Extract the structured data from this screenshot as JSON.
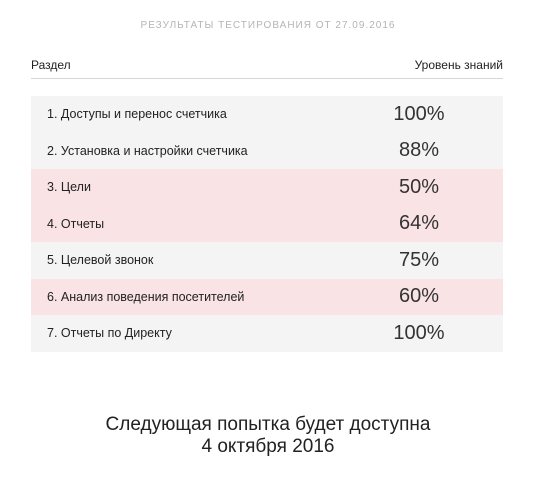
{
  "results_title": "РЕЗУЛЬТАТЫ ТЕСТИРОВАНИЯ ОТ 27.09.2016",
  "table": {
    "header": {
      "section": "Раздел",
      "knowledge": "Уровень знаний"
    },
    "rows": [
      {
        "section": "1. Доступы и перенос счетчика",
        "score": "100%",
        "low_score": false
      },
      {
        "section": "2. Установка и настройки счетчика",
        "score": "88%",
        "low_score": false
      },
      {
        "section": "3. Цели",
        "score": "50%",
        "low_score": true
      },
      {
        "section": "4. Отчеты",
        "score": "64%",
        "low_score": true
      },
      {
        "section": "5. Целевой звонок",
        "score": "75%",
        "low_score": false
      },
      {
        "section": "6. Анализ поведения посетителей",
        "score": "60%",
        "low_score": true
      },
      {
        "section": "7. Отчеты по Директу",
        "score": "100%",
        "low_score": false
      }
    ]
  },
  "next_attempt": {
    "line1": "Следующая попытка будет доступна",
    "line2": "4 октября 2016"
  },
  "colors": {
    "row_normal": "#f4f4f4",
    "row_low_score": "#f9e3e4",
    "title_gray": "#b5b5b5"
  }
}
